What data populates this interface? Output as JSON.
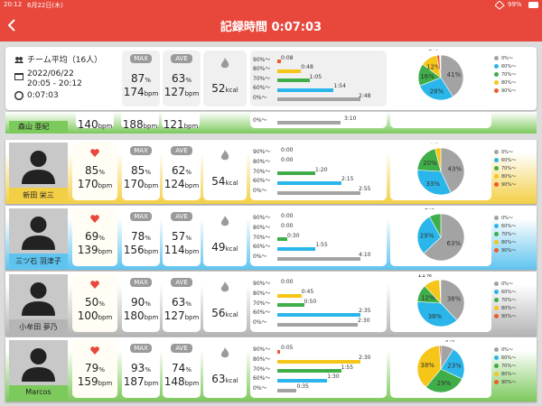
{
  "status": {
    "time": "20:12",
    "date": "6月22日(木)",
    "battery": "99%"
  },
  "header": {
    "title": "記録時間 0:07:03"
  },
  "units": {
    "pct": "%",
    "bpm": "bpm",
    "kcal": "kcal"
  },
  "badges": {
    "max": "MAX",
    "ave": "AVE"
  },
  "zone_labels": [
    "90%～",
    "80%～",
    "70%～",
    "60%～",
    "0%～"
  ],
  "zone_colors": [
    "#ef5a2a",
    "#f5c518",
    "#3fae49",
    "#2ab6ea",
    "#a3a3a3"
  ],
  "summary": {
    "team": "チーム平均（16人）",
    "date": "2022/06/22",
    "span": "20:05 - 20:12",
    "duration": "0:07:03",
    "max": {
      "pct": 87,
      "bpm": 174
    },
    "ave": {
      "pct": 63,
      "bpm": 127
    },
    "kcal": 52,
    "zones": {
      "seconds": [
        8,
        48,
        65,
        114,
        168
      ],
      "value_labels": [
        "0:08",
        "0:48",
        "1:05",
        "1:54",
        "2:48"
      ]
    },
    "pie": {
      "values": [
        2,
        12,
        16,
        28,
        41
      ],
      "value_labels": [
        "2%",
        "12%",
        "16%",
        "28%",
        "41%"
      ]
    }
  },
  "partial_row": {
    "name": "森山 亜紀",
    "current_bpm": 140,
    "max_bpm": 188,
    "ave_bpm": 121,
    "last_zone": {
      "seconds": 190,
      "value_label": "3:10"
    }
  },
  "members": [
    {
      "name": "新田 栄三",
      "color": "#f3cf45",
      "current": {
        "pct": 85,
        "bpm": 170
      },
      "max": {
        "pct": 85,
        "bpm": 170
      },
      "ave": {
        "pct": 62,
        "bpm": 124
      },
      "kcal": 54,
      "zones": {
        "seconds": [
          0,
          0,
          80,
          135,
          175
        ],
        "value_labels": [
          "0:00",
          "0:00",
          "1:20",
          "2:15",
          "2:55"
        ]
      },
      "pie": {
        "values": [
          0,
          4,
          20,
          33,
          43
        ],
        "value_labels": [
          "0%",
          "4%",
          "20%",
          "33%",
          "43%"
        ]
      }
    },
    {
      "name": "三ツ石 羽津子",
      "color": "#5ec3ef",
      "current": {
        "pct": 69,
        "bpm": 139
      },
      "max": {
        "pct": 78,
        "bpm": 156
      },
      "ave": {
        "pct": 57,
        "bpm": 114
      },
      "kcal": 49,
      "zones": {
        "seconds": [
          0,
          0,
          30,
          115,
          250
        ],
        "value_labels": [
          "0:00",
          "0:00",
          "0:30",
          "1:55",
          "4:10"
        ]
      },
      "pie": {
        "values": [
          0,
          0,
          8,
          29,
          63
        ],
        "value_labels": [
          "0%",
          "0%",
          "8%",
          "29%",
          "63%"
        ]
      }
    },
    {
      "name": "小牟田 夢乃",
      "color": "#b5b5b5",
      "current": {
        "pct": 50,
        "bpm": 100
      },
      "max": {
        "pct": 90,
        "bpm": 180
      },
      "ave": {
        "pct": 63,
        "bpm": 127
      },
      "kcal": 56,
      "zones": {
        "seconds": [
          0,
          45,
          50,
          155,
          150
        ],
        "value_labels": [
          "0:00",
          "0:45",
          "0:50",
          "2:35",
          "2:30"
        ]
      },
      "pie": {
        "values": [
          0,
          11,
          12,
          38,
          38
        ],
        "value_labels": [
          "0%",
          "11%",
          "12%",
          "38%",
          "38%"
        ]
      }
    },
    {
      "name": "Marcos",
      "color": "#7cc95c",
      "current": {
        "pct": 79,
        "bpm": 159
      },
      "max": {
        "pct": 93,
        "bpm": 187
      },
      "ave": {
        "pct": 74,
        "bpm": 148
      },
      "kcal": 63,
      "zones": {
        "seconds": [
          5,
          150,
          115,
          90,
          35
        ],
        "value_labels": [
          "0:05",
          "2:30",
          "1:55",
          "1:30",
          "0:35"
        ]
      },
      "pie": {
        "values": [
          1,
          38,
          29,
          23,
          9
        ],
        "value_labels": [
          "1%",
          "38%",
          "29%",
          "23%",
          "9%"
        ]
      }
    }
  ]
}
